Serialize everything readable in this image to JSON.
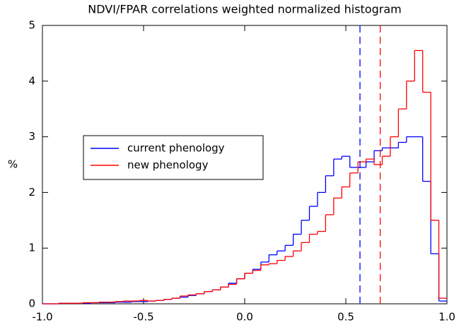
{
  "chart_data": {
    "type": "histogram",
    "title": "NDVI/FPAR correlations weighted normalized histogram",
    "y_label": "%",
    "bins": [
      -1,
      -0.96,
      -0.92,
      -0.88,
      -0.84,
      -0.8,
      -0.76,
      -0.72,
      -0.68,
      -0.64,
      -0.6,
      -0.56,
      -0.52,
      -0.48,
      -0.44,
      -0.4,
      -0.36,
      -0.32,
      -0.28,
      -0.24,
      -0.2,
      -0.16,
      -0.12,
      -0.08,
      -0.04,
      0,
      0.04,
      0.08,
      0.12,
      0.16,
      0.2,
      0.24,
      0.28,
      0.32,
      0.36,
      0.4,
      0.44,
      0.48,
      0.52,
      0.56,
      0.6,
      0.64,
      0.68,
      0.72,
      0.76,
      0.8,
      0.84,
      0.88,
      0.92,
      0.96,
      1
    ],
    "series": [
      {
        "name": "current phenology",
        "color": "#0000ff",
        "values": [
          0,
          0,
          0.01,
          0.01,
          0.01,
          0.01,
          0.02,
          0.02,
          0.02,
          0.03,
          0.03,
          0.04,
          0.04,
          0.05,
          0.06,
          0.08,
          0.1,
          0.12,
          0.15,
          0.18,
          0.22,
          0.25,
          0.3,
          0.37,
          0.45,
          0.55,
          0.62,
          0.75,
          0.88,
          0.95,
          1.05,
          1.25,
          1.5,
          1.75,
          2.0,
          2.3,
          2.6,
          2.65,
          2.45,
          2.45,
          2.55,
          2.75,
          2.8,
          2.8,
          2.9,
          3.0,
          3.0,
          2.2,
          0.9,
          0.05
        ]
      },
      {
        "name": "new phenology",
        "color": "#ff0000",
        "values": [
          0,
          0,
          0.01,
          0.01,
          0.01,
          0.02,
          0.02,
          0.03,
          0.03,
          0.04,
          0.05,
          0.05,
          0.06,
          0.05,
          0.06,
          0.08,
          0.1,
          0.14,
          0.16,
          0.18,
          0.22,
          0.25,
          0.3,
          0.35,
          0.45,
          0.55,
          0.6,
          0.7,
          0.72,
          0.78,
          0.85,
          0.95,
          1.1,
          1.25,
          1.3,
          1.6,
          1.9,
          2.1,
          2.35,
          2.55,
          2.6,
          2.5,
          2.65,
          3.0,
          3.5,
          4.0,
          4.55,
          3.8,
          1.5,
          0.1
        ]
      }
    ],
    "vlines": [
      {
        "x": 0.57,
        "color": "#0000ff"
      },
      {
        "x": 0.67,
        "color": "#ff0000"
      }
    ],
    "xlim": [
      -1,
      1
    ],
    "xticks": [
      {
        "value": -1,
        "label": "-1.0"
      },
      {
        "value": -0.5,
        "label": "-0.5"
      },
      {
        "value": 0,
        "label": "0.0"
      },
      {
        "value": 0.5,
        "label": "0.5"
      },
      {
        "value": 1,
        "label": "1.0"
      }
    ],
    "ylim": [
      0,
      5
    ],
    "yticks": [
      0,
      1,
      2,
      3,
      4,
      5
    ],
    "legend": "center-left"
  }
}
